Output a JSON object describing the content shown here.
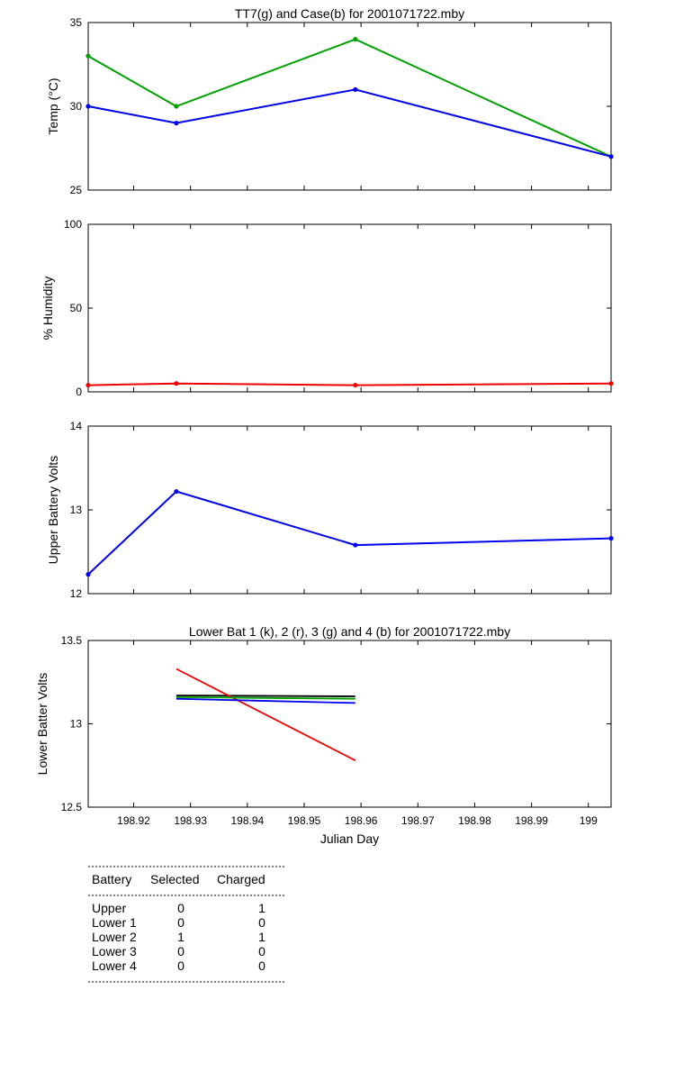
{
  "chart_data": [
    {
      "type": "line",
      "title": "TT7(g) and Case(b) for 2001071722.mby",
      "xlabel": "",
      "ylabel": "Temp  (°C)",
      "xlim": [
        198.912,
        199.004
      ],
      "ylim": [
        25,
        35
      ],
      "yticks": [
        "25",
        "30",
        "35"
      ],
      "xticks": [
        198.92,
        198.93,
        198.94,
        198.95,
        198.96,
        198.97,
        198.98,
        198.99,
        199
      ],
      "grid": false,
      "series": [
        {
          "color": "#00a000",
          "x": [
            198.912,
            198.9275,
            198.959,
            199.004
          ],
          "y": [
            33,
            30,
            34,
            27
          ]
        },
        {
          "color": "#0000ee",
          "x": [
            198.912,
            198.9275,
            198.959,
            199.004
          ],
          "y": [
            30,
            29,
            31,
            27
          ]
        }
      ]
    },
    {
      "type": "line",
      "title": "",
      "xlabel": "",
      "ylabel": "% Humidity",
      "xlim": [
        198.912,
        199.004
      ],
      "ylim": [
        0,
        100
      ],
      "yticks": [
        "0",
        "50",
        "100"
      ],
      "xticks": [
        198.92,
        198.93,
        198.94,
        198.95,
        198.96,
        198.97,
        198.98,
        198.99,
        199
      ],
      "grid": false,
      "series": [
        {
          "color": "#ee0000",
          "x": [
            198.912,
            198.9275,
            198.959,
            199.004
          ],
          "y": [
            4,
            5,
            4,
            5
          ]
        }
      ]
    },
    {
      "type": "line",
      "title": "",
      "xlabel": "",
      "ylabel": "Upper Battery Volts",
      "xlim": [
        198.912,
        199.004
      ],
      "ylim": [
        12,
        14
      ],
      "yticks": [
        "12",
        "13",
        "14"
      ],
      "xticks": [
        198.92,
        198.93,
        198.94,
        198.95,
        198.96,
        198.97,
        198.98,
        198.99,
        199
      ],
      "grid": false,
      "series": [
        {
          "color": "#0000ee",
          "x": [
            198.912,
            198.9275,
            198.959,
            199.004
          ],
          "y": [
            12.23,
            13.22,
            12.58,
            12.66
          ]
        }
      ]
    },
    {
      "type": "line",
      "title": "Lower Bat 1 (k), 2 (r), 3 (g) and 4 (b) for 2001071722.mby",
      "xlabel": "Julian Day",
      "ylabel": "Lower Batter Volts",
      "xlim": [
        198.912,
        199.004
      ],
      "ylim": [
        12.5,
        13.5
      ],
      "yticks": [
        "12.5",
        "13",
        "13.5"
      ],
      "xticks": [
        198.92,
        198.93,
        198.94,
        198.95,
        198.96,
        198.97,
        198.98,
        198.99,
        199
      ],
      "xticklabels": [
        "198.92",
        "198.93",
        "198.94",
        "198.95",
        "198.96",
        "198.97",
        "198.98",
        "198.99",
        "199"
      ],
      "grid": false,
      "series": [
        {
          "color": "#000000",
          "x": [
            198.9275,
            198.959
          ],
          "y": [
            13.17,
            13.165
          ]
        },
        {
          "color": "#ee0000",
          "x": [
            198.9275,
            198.959
          ],
          "y": [
            13.33,
            12.78
          ]
        },
        {
          "color": "#00a000",
          "x": [
            198.9275,
            198.959
          ],
          "y": [
            13.16,
            13.15
          ]
        },
        {
          "color": "#0000ee",
          "x": [
            198.9275,
            198.959
          ],
          "y": [
            13.15,
            13.125
          ]
        }
      ]
    }
  ],
  "battery_table": {
    "headers": [
      "Battery",
      "Selected",
      "Charged"
    ],
    "rows": [
      [
        "Upper",
        "0",
        "1"
      ],
      [
        "Lower 1",
        "0",
        "0"
      ],
      [
        "Lower 2",
        "1",
        "1"
      ],
      [
        "Lower 3",
        "0",
        "0"
      ],
      [
        "Lower 4",
        "0",
        "0"
      ]
    ]
  }
}
